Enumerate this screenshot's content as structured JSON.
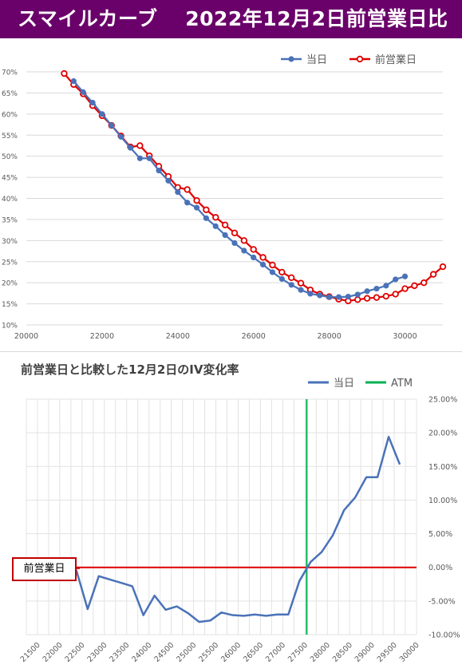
{
  "header": {
    "title": "スマイルカーブ　 2022年12月2日前営業日比"
  },
  "chart_data": [
    {
      "type": "line",
      "title": "",
      "legend": "top-right",
      "grid": true,
      "x_axis": {
        "min": 20000,
        "max": 31000,
        "ticks": [
          20000,
          22000,
          24000,
          26000,
          28000,
          30000
        ],
        "tick_labels": [
          "20000",
          "22000",
          "24000",
          "26000",
          "28000",
          "30000"
        ]
      },
      "y_axis": {
        "min": 10,
        "max": 70,
        "unit": "%",
        "ticks": [
          10,
          15,
          20,
          25,
          30,
          35,
          40,
          45,
          50,
          55,
          60,
          65,
          70
        ],
        "tick_labels": [
          "10%",
          "15%",
          "20%",
          "25%",
          "30%",
          "35%",
          "40%",
          "45%",
          "50%",
          "55%",
          "60%",
          "65%",
          "70%"
        ]
      },
      "series": [
        {
          "name": "当日",
          "color": "#4a72b8",
          "points": [
            [
              21250,
              67.8
            ],
            [
              21500,
              65.2
            ],
            [
              21750,
              62.7
            ],
            [
              22000,
              60.0
            ],
            [
              22250,
              57.3
            ],
            [
              22500,
              54.6
            ],
            [
              22750,
              52.0
            ],
            [
              23000,
              49.5
            ],
            [
              23250,
              49.5
            ],
            [
              23500,
              46.6
            ],
            [
              23750,
              44.2
            ],
            [
              24000,
              41.5
            ],
            [
              24250,
              39.0
            ],
            [
              24500,
              37.8
            ],
            [
              24750,
              35.3
            ],
            [
              25000,
              33.4
            ],
            [
              25250,
              31.3
            ],
            [
              25500,
              29.4
            ],
            [
              25750,
              27.6
            ],
            [
              26000,
              26.0
            ],
            [
              26250,
              24.3
            ],
            [
              26500,
              22.5
            ],
            [
              26750,
              20.9
            ],
            [
              27000,
              19.5
            ],
            [
              27250,
              18.3
            ],
            [
              27500,
              17.4
            ],
            [
              27750,
              17.0
            ],
            [
              28000,
              16.6
            ],
            [
              28250,
              16.6
            ],
            [
              28500,
              16.7
            ],
            [
              28750,
              17.2
            ],
            [
              29000,
              18.0
            ],
            [
              29250,
              18.6
            ],
            [
              29500,
              19.3
            ],
            [
              29750,
              20.8
            ],
            [
              30000,
              21.5
            ]
          ]
        },
        {
          "name": "前営業日",
          "color": "#e00000",
          "points": [
            [
              21000,
              69.6
            ],
            [
              21250,
              67.0
            ],
            [
              21500,
              64.8
            ],
            [
              21750,
              62.0
            ],
            [
              22000,
              59.6
            ],
            [
              22250,
              57.3
            ],
            [
              22500,
              54.8
            ],
            [
              22750,
              52.2
            ],
            [
              23000,
              52.5
            ],
            [
              23250,
              50.1
            ],
            [
              23500,
              47.6
            ],
            [
              23750,
              45.2
            ],
            [
              24000,
              42.6
            ],
            [
              24250,
              42.1
            ],
            [
              24500,
              39.5
            ],
            [
              24750,
              37.3
            ],
            [
              25000,
              35.5
            ],
            [
              25250,
              33.7
            ],
            [
              25500,
              31.8
            ],
            [
              25750,
              30.0
            ],
            [
              26000,
              27.9
            ],
            [
              26250,
              26.0
            ],
            [
              26500,
              24.2
            ],
            [
              26750,
              22.5
            ],
            [
              27000,
              21.2
            ],
            [
              27250,
              19.9
            ],
            [
              27500,
              18.3
            ],
            [
              27750,
              17.3
            ],
            [
              28000,
              16.7
            ],
            [
              28250,
              16.1
            ],
            [
              28500,
              15.7
            ],
            [
              28750,
              16.0
            ],
            [
              29000,
              16.3
            ],
            [
              29250,
              16.5
            ],
            [
              29500,
              16.8
            ],
            [
              29750,
              17.3
            ],
            [
              30000,
              18.6
            ],
            [
              30250,
              19.3
            ],
            [
              30500,
              20.0
            ],
            [
              30750,
              22.0
            ],
            [
              31000,
              23.8
            ]
          ]
        }
      ]
    },
    {
      "type": "line",
      "title": "前営業日と比較した12月2日のIV変化率",
      "legend": "top-right",
      "grid": true,
      "categories": [
        "21500",
        "21750",
        "22000",
        "22250",
        "22500",
        "22750",
        "23000",
        "23250",
        "23500",
        "23750",
        "24000",
        "24250",
        "24500",
        "24750",
        "25000",
        "25250",
        "25500",
        "25750",
        "26000",
        "26250",
        "26500",
        "26750",
        "27000",
        "27250",
        "27500",
        "27750",
        "28000",
        "28250",
        "28500",
        "28750",
        "29000",
        "29250",
        "29500",
        "29750",
        "30000"
      ],
      "x_tick_labels": [
        "21500",
        "22000",
        "22500",
        "23000",
        "23500",
        "24000",
        "24500",
        "25000",
        "25500",
        "26000",
        "26500",
        "27000",
        "27500",
        "28000",
        "28500",
        "29000",
        "29500",
        "30000"
      ],
      "y_axis": {
        "min": -10,
        "max": 25,
        "unit": "%",
        "position": "right",
        "ticks": [
          -10,
          -5,
          0,
          5,
          10,
          15,
          20,
          25
        ],
        "tick_labels": [
          "-10.00%",
          "-5.00%",
          "0.00%",
          "5.00%",
          "10.00%",
          "15.00%",
          "20.00%",
          "25.00%"
        ]
      },
      "series": [
        {
          "name": "当日",
          "color": "#4a72b8",
          "values": [
            null,
            null,
            0.3,
            -0.2,
            -0.5,
            -6.2,
            -1.3,
            -1.8,
            -2.3,
            -2.8,
            -7.1,
            -4.2,
            -6.3,
            -5.8,
            -6.8,
            -8.1,
            -7.9,
            -6.7,
            -7.1,
            -7.2,
            -7.0,
            -7.2,
            -7.0,
            -7.0,
            -2.0,
            0.8,
            2.3,
            4.8,
            8.5,
            10.4,
            13.4,
            13.4,
            19.4,
            15.3,
            null
          ]
        },
        {
          "name": "前営業日",
          "color": "#e00000",
          "values": [
            null,
            null,
            0,
            0,
            0,
            0,
            0,
            0,
            0,
            0,
            0,
            0,
            0,
            0,
            0,
            0,
            0,
            0,
            0,
            0,
            0,
            0,
            0,
            0,
            0,
            0,
            0,
            0,
            0,
            0,
            0,
            0,
            0,
            0,
            0
          ]
        }
      ],
      "atm": {
        "name": "ATM",
        "color": "#00b050",
        "category": "27750"
      },
      "annotation": "前営業日"
    }
  ]
}
